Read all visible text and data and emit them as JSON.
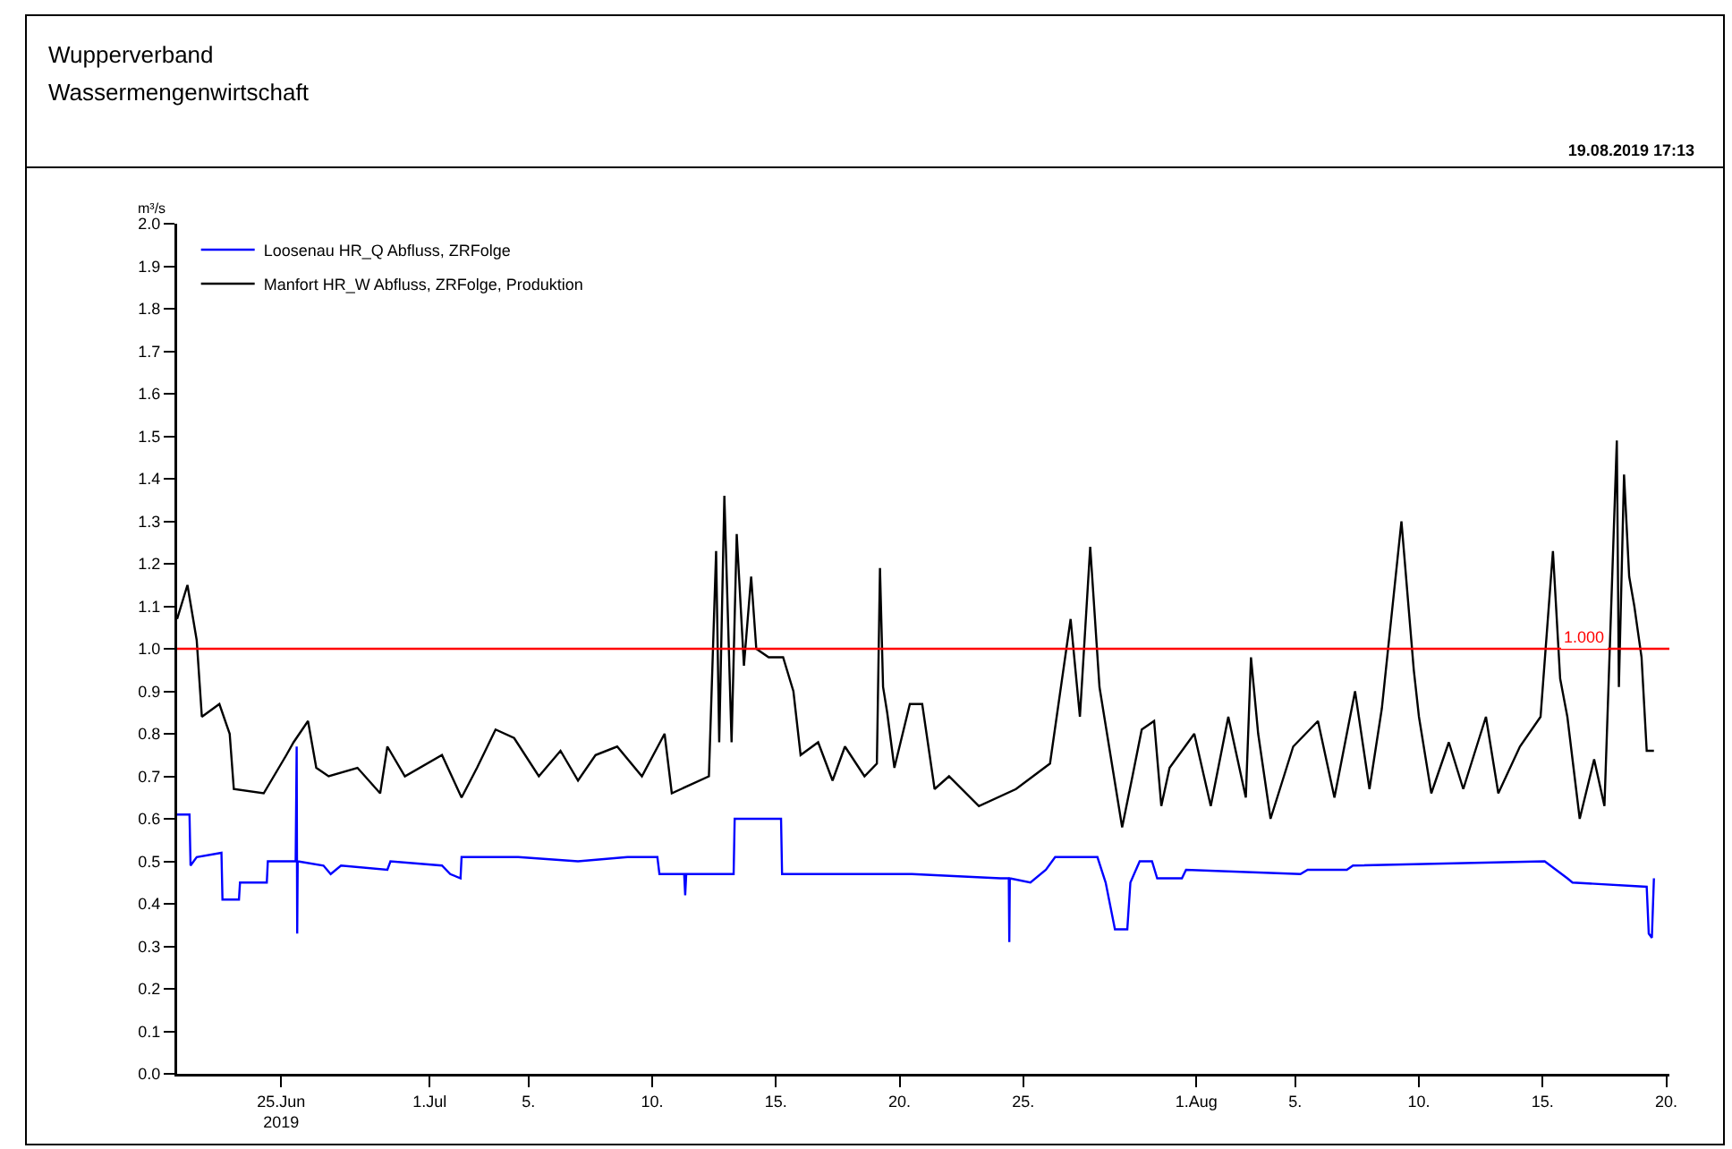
{
  "chart_data": {
    "type": "line",
    "title": "Wupperverband",
    "subtitle": "Wassermengenwirtschaft",
    "ylabel": "m³/s",
    "annotations": [
      "19.08.2019 17:13"
    ],
    "xlim": [
      "2019-06-20T19:00",
      "2019-08-20T03:00"
    ],
    "xticks": [
      {
        "value": "2019-06-25",
        "label": "25.Jun\n2019"
      },
      {
        "value": "2019-07-01",
        "label": "1.Jul"
      },
      {
        "value": "2019-07-05",
        "label": "5."
      },
      {
        "value": "2019-07-10",
        "label": "10."
      },
      {
        "value": "2019-07-15",
        "label": "15."
      },
      {
        "value": "2019-07-20",
        "label": "20."
      },
      {
        "value": "2019-07-25",
        "label": "25."
      },
      {
        "value": "2019-08-01",
        "label": "1.Aug"
      },
      {
        "value": "2019-08-05",
        "label": "5."
      },
      {
        "value": "2019-08-10",
        "label": "10."
      },
      {
        "value": "2019-08-15",
        "label": "15."
      },
      {
        "value": "2019-08-20",
        "label": "20."
      }
    ],
    "ylim": [
      0,
      2
    ],
    "yticks": [
      {
        "value": 0,
        "label": "0.0"
      },
      0.1,
      0.2,
      0.3,
      0.4,
      0.5,
      0.6,
      0.7,
      0.8,
      0.9,
      {
        "value": 1,
        "label": "1.0"
      },
      1.1,
      1.2,
      1.3,
      1.4,
      1.5,
      1.6,
      1.7,
      1.8,
      1.9,
      {
        "value": 2,
        "label": "2.0"
      }
    ],
    "grid": false,
    "legend": "top left",
    "marker": "none",
    "line_style": "solid",
    "ref_lines": [
      {
        "axis": "y",
        "value": 1,
        "label": "1.000",
        "color": "#ff0000"
      }
    ],
    "series": [
      {
        "name": "Loosenau HR_Q Abfluss, ZRFolge",
        "color": "#0000ff",
        "x": [
          "2019-06-20T19:00",
          "2019-06-21T07:00",
          "2019-06-21T08:00",
          "2019-06-21T14:00",
          "2019-06-22T14:00",
          "2019-06-22T15:00",
          "2019-06-23T07:00",
          "2019-06-23T08:00",
          "2019-06-24T10:00",
          "2019-06-24T11:00",
          "2019-06-25T14:00",
          "2019-06-25T15:00",
          "2019-06-25T15:30",
          "2019-06-25T16:00",
          "2019-06-26T17:00",
          "2019-06-27T00:00",
          "2019-06-27T10:00",
          "2019-06-29T07:00",
          "2019-06-29T10:00",
          "2019-07-01T12:00",
          "2019-07-01T20:00",
          "2019-07-02T06:00",
          "2019-07-02T07:00",
          "2019-07-04T14:00",
          "2019-07-07T00:00",
          "2019-07-09T00:00",
          "2019-07-10T05:00",
          "2019-07-10T07:00",
          "2019-07-11T07:00",
          "2019-07-11T08:00",
          "2019-07-11T09:00",
          "2019-07-13T07:00",
          "2019-07-13T08:00",
          "2019-07-15T05:00",
          "2019-07-15T06:00",
          "2019-07-19T19:00",
          "2019-07-20T12:00",
          "2019-07-24T02:00",
          "2019-07-24T10:00",
          "2019-07-24T10:30",
          "2019-07-24T11:00",
          "2019-07-25T07:00",
          "2019-07-25T22:00",
          "2019-07-26T07:00",
          "2019-07-28T00:00",
          "2019-07-28T08:00",
          "2019-07-28T17:00",
          "2019-07-29T05:00",
          "2019-07-29T08:00",
          "2019-07-29T17:00",
          "2019-07-30T05:00",
          "2019-07-30T10:00",
          "2019-07-31T10:00",
          "2019-07-31T14:00",
          "2019-08-05T05:00",
          "2019-08-05T12:00",
          "2019-08-07T02:00",
          "2019-08-07T08:00",
          "2019-08-15T02:00",
          "2019-08-16T00:00",
          "2019-08-16T05:00",
          "2019-08-19T05:00",
          "2019-08-19T07:00",
          "2019-08-19T10:00",
          "2019-08-19T12:00"
        ],
        "values": [
          0.61,
          0.61,
          0.49,
          0.51,
          0.52,
          0.41,
          0.41,
          0.45,
          0.45,
          0.5,
          0.5,
          0.77,
          0.33,
          0.5,
          0.49,
          0.47,
          0.49,
          0.48,
          0.5,
          0.49,
          0.47,
          0.46,
          0.51,
          0.51,
          0.5,
          0.51,
          0.51,
          0.47,
          0.47,
          0.42,
          0.47,
          0.47,
          0.6,
          0.6,
          0.47,
          0.47,
          0.47,
          0.46,
          0.46,
          0.31,
          0.46,
          0.45,
          0.48,
          0.51,
          0.51,
          0.45,
          0.34,
          0.34,
          0.45,
          0.5,
          0.5,
          0.46,
          0.46,
          0.48,
          0.47,
          0.48,
          0.48,
          0.49,
          0.5,
          0.46,
          0.45,
          0.44,
          0.33,
          0.32,
          0.46
        ]
      },
      {
        "name": "Manfort HR_W Abfluss, ZRFolge, Produktion",
        "color": "#000000",
        "x": [
          "2019-06-20T19:00",
          "2019-06-21T05:00",
          "2019-06-21T14:00",
          "2019-06-21T19:00",
          "2019-06-22T12:00",
          "2019-06-22T22:00",
          "2019-06-23T02:00",
          "2019-06-24T07:00",
          "2019-06-25T05:00",
          "2019-06-25T12:00",
          "2019-06-26T02:00",
          "2019-06-26T10:00",
          "2019-06-26T22:00",
          "2019-06-28T02:00",
          "2019-06-29T00:00",
          "2019-06-29T07:00",
          "2019-06-30T00:00",
          "2019-07-01T12:00",
          "2019-07-02T07:00",
          "2019-07-02T22:00",
          "2019-07-03T16:00",
          "2019-07-04T10:00",
          "2019-07-05T10:00",
          "2019-07-06T07:00",
          "2019-07-07T00:00",
          "2019-07-07T17:00",
          "2019-07-08T14:00",
          "2019-07-09T14:00",
          "2019-07-10T12:00",
          "2019-07-10T19:00",
          "2019-07-12T07:00",
          "2019-07-12T14:00",
          "2019-07-12T17:00",
          "2019-07-12T22:00",
          "2019-07-13T05:00",
          "2019-07-13T10:00",
          "2019-07-13T17:00",
          "2019-07-14T00:00",
          "2019-07-14T05:00",
          "2019-07-14T17:00",
          "2019-07-15T07:00",
          "2019-07-15T17:00",
          "2019-07-16T00:00",
          "2019-07-16T17:00",
          "2019-07-17T07:00",
          "2019-07-17T19:00",
          "2019-07-18T14:00",
          "2019-07-19T02:00",
          "2019-07-19T05:00",
          "2019-07-19T08:00",
          "2019-07-19T12:00",
          "2019-07-19T19:00",
          "2019-07-20T10:00",
          "2019-07-20T22:00",
          "2019-07-21T10:00",
          "2019-07-22T00:00",
          "2019-07-23T05:00",
          "2019-07-24T17:00",
          "2019-07-26T02:00",
          "2019-07-26T22:00",
          "2019-07-27T07:00",
          "2019-07-27T17:00",
          "2019-07-28T02:00",
          "2019-07-28T14:00",
          "2019-07-29T00:00",
          "2019-07-29T10:00",
          "2019-07-29T19:00",
          "2019-07-30T07:00",
          "2019-07-30T14:00",
          "2019-07-30T22:00",
          "2019-07-31T22:00",
          "2019-08-01T14:00",
          "2019-08-02T07:00",
          "2019-08-03T00:00",
          "2019-08-03T05:00",
          "2019-08-03T12:00",
          "2019-08-04T00:00",
          "2019-08-04T22:00",
          "2019-08-05T22:00",
          "2019-08-06T14:00",
          "2019-08-07T10:00",
          "2019-08-08T00:00",
          "2019-08-08T12:00",
          "2019-08-09T07:00",
          "2019-08-09T19:00",
          "2019-08-10T00:00",
          "2019-08-10T12:00",
          "2019-08-11T05:00",
          "2019-08-11T19:00",
          "2019-08-12T17:00",
          "2019-08-13T05:00",
          "2019-08-14T02:00",
          "2019-08-14T22:00",
          "2019-08-15T10:00",
          "2019-08-15T17:00",
          "2019-08-16T00:00",
          "2019-08-16T12:00",
          "2019-08-17T02:00",
          "2019-08-17T12:00",
          "2019-08-18T00:00",
          "2019-08-18T02:00",
          "2019-08-18T07:00",
          "2019-08-18T12:00",
          "2019-08-18T17:00",
          "2019-08-19T00:00",
          "2019-08-19T05:00",
          "2019-08-19T12:00"
        ],
        "values": [
          1.07,
          1.15,
          1.02,
          0.84,
          0.87,
          0.8,
          0.67,
          0.66,
          0.75,
          0.78,
          0.83,
          0.72,
          0.7,
          0.72,
          0.66,
          0.77,
          0.7,
          0.75,
          0.65,
          0.72,
          0.81,
          0.79,
          0.7,
          0.76,
          0.69,
          0.75,
          0.77,
          0.7,
          0.8,
          0.66,
          0.7,
          1.23,
          0.78,
          1.36,
          0.78,
          1.27,
          0.96,
          1.17,
          1.0,
          0.98,
          0.98,
          0.9,
          0.75,
          0.78,
          0.69,
          0.77,
          0.7,
          0.73,
          1.19,
          0.91,
          0.85,
          0.72,
          0.87,
          0.87,
          0.67,
          0.7,
          0.63,
          0.67,
          0.73,
          1.07,
          0.84,
          1.24,
          0.91,
          0.73,
          0.58,
          0.7,
          0.81,
          0.83,
          0.63,
          0.72,
          0.8,
          0.63,
          0.84,
          0.65,
          0.98,
          0.8,
          0.6,
          0.77,
          0.83,
          0.65,
          0.9,
          0.67,
          0.86,
          1.3,
          0.95,
          0.84,
          0.66,
          0.78,
          0.67,
          0.84,
          0.66,
          0.77,
          0.84,
          1.23,
          0.93,
          0.84,
          0.6,
          0.74,
          0.63,
          1.49,
          0.91,
          1.41,
          1.17,
          1.1,
          0.98,
          0.76,
          0.76
        ]
      }
    ]
  }
}
